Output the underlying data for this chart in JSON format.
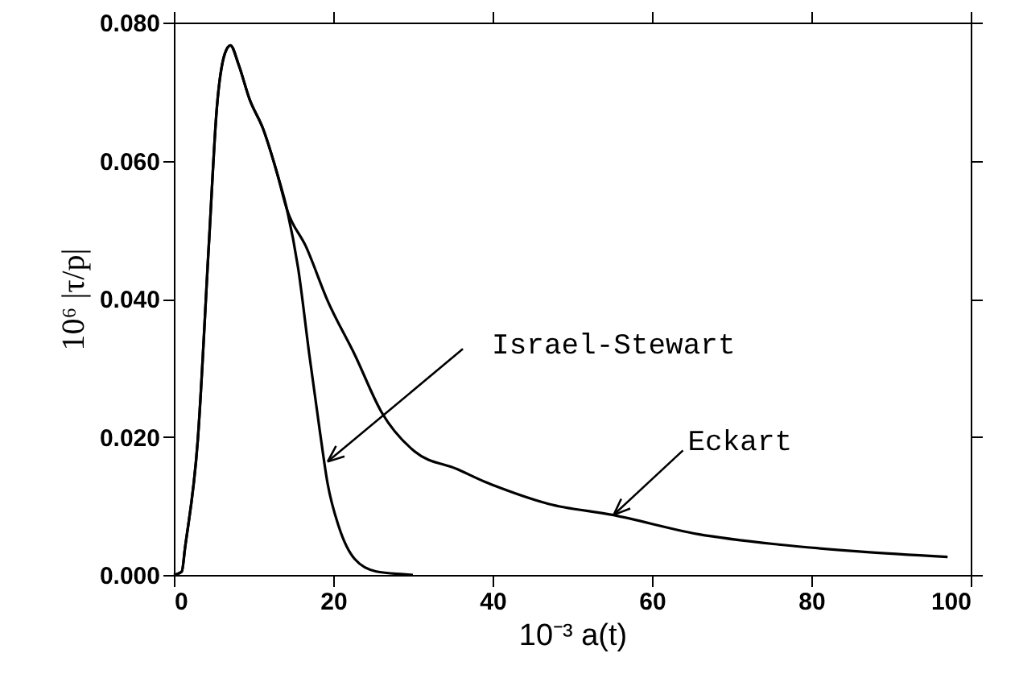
{
  "chart_data": {
    "type": "line",
    "xlabel": "10⁻³ a(t)",
    "ylabel": "10⁶ |τ/p|",
    "xlim": [
      0,
      100
    ],
    "xticks": [
      0,
      20,
      40,
      60,
      80,
      100
    ],
    "ylim": [
      0,
      0.08
    ],
    "yticks": [
      {
        "value": 0,
        "label": "0.000"
      },
      {
        "value": 0.02,
        "label": "0.020"
      },
      {
        "value": 0.04,
        "label": "0.040"
      },
      {
        "value": 0.06,
        "label": "0.060"
      },
      {
        "value": 0.08,
        "label": "0.080"
      }
    ],
    "grid": false,
    "marker": "none",
    "line_style": "solid",
    "series": [
      {
        "color": "#000000",
        "x": [
          0,
          1,
          1.4,
          3.0,
          4.4,
          5.4,
          6.4,
          7.1,
          8.1,
          9.5,
          11.2,
          12.9,
          14.2,
          15.6,
          17.0,
          18.3,
          19.3,
          20.7,
          22.7,
          25.4,
          28.8,
          30
        ],
        "values": [
          0,
          0.0005,
          0.0039,
          0.0195,
          0.048,
          0.0677,
          0.0755,
          0.0767,
          0.074,
          0.0689,
          0.0646,
          0.0584,
          0.0529,
          0.0444,
          0.0319,
          0.021,
          0.0132,
          0.007,
          0.0023,
          0.0005,
          0.0001,
          0
        ]
      },
      {
        "color": "#000000",
        "x": [
          0,
          1,
          1.4,
          3.0,
          4.4,
          5.4,
          6.4,
          7.1,
          8.1,
          9.5,
          11.2,
          12.9,
          14.2,
          16.6,
          19.3,
          22.7,
          26.1,
          30.2,
          35.6,
          39,
          41,
          47,
          55,
          65.8,
          75.9,
          86,
          97.1
        ],
        "values": [
          0,
          0.0005,
          0.0039,
          0.0195,
          0.048,
          0.0677,
          0.0755,
          0.0767,
          0.074,
          0.0689,
          0.0646,
          0.0584,
          0.0529,
          0.0475,
          0.0397,
          0.0319,
          0.0235,
          0.0179,
          0.0153,
          0.0135,
          0.0126,
          0.0103,
          0.0087,
          0.0059,
          0.0044,
          0.0034,
          0.0026
        ]
      }
    ],
    "annotations": [
      {
        "text": "Israel-Stewart",
        "x": 19.3,
        "y": 0.0164
      },
      {
        "text": "Eckart",
        "x": 55.2,
        "y": 0.0087
      }
    ]
  }
}
